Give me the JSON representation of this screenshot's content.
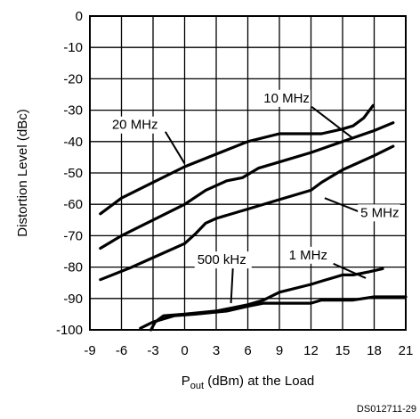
{
  "chart_data": {
    "type": "line",
    "xlabel_main": "P",
    "xlabel_sub": "out",
    "xlabel_rest": " (dBm) at the Load",
    "ylabel": "Distortion Level (dBc)",
    "xlim": [
      -9,
      21
    ],
    "ylim": [
      -100,
      0
    ],
    "xticks": [
      -9,
      -6,
      -3,
      0,
      3,
      6,
      9,
      12,
      15,
      18,
      21
    ],
    "yticks": [
      0,
      -10,
      -20,
      -30,
      -40,
      -50,
      -60,
      -70,
      -80,
      -90,
      -100
    ],
    "xtick_labels": [
      "-9",
      "-6",
      "-3",
      "0",
      "3",
      "6",
      "9",
      "12",
      "15",
      "18",
      "21"
    ],
    "ytick_labels": [
      "0",
      "-10",
      "-20",
      "-30",
      "-40",
      "-50",
      "-60",
      "-70",
      "-80",
      "-90",
      "-100"
    ],
    "grid": true,
    "footnote": "DS012711-29",
    "series": [
      {
        "name": "20 MHz",
        "x": [
          -8,
          -6,
          -3,
          0,
          3,
          6,
          9,
          12,
          13,
          15,
          16,
          17,
          17.9
        ],
        "y": [
          -63,
          -58,
          -53,
          -48,
          -44,
          -40,
          -37.5,
          -37.5,
          -37.5,
          -36,
          -35,
          -32.5,
          -28.5
        ]
      },
      {
        "name": "10 MHz",
        "x": [
          -8,
          -6,
          -3,
          0,
          2,
          4,
          5.5,
          7,
          9,
          12,
          15,
          18,
          19.8
        ],
        "y": [
          -74,
          -70,
          -65,
          -60,
          -55.5,
          -52.5,
          -51.5,
          -48.5,
          -46.5,
          -43.5,
          -40,
          -36.5,
          -34
        ]
      },
      {
        "name": "5 MHz",
        "x": [
          -8,
          -5,
          -3,
          0,
          1,
          2,
          3,
          6,
          9,
          12,
          13,
          15,
          18,
          19.8
        ],
        "y": [
          -84,
          -80,
          -77,
          -72.5,
          -69.5,
          -66,
          -64.5,
          -61.5,
          -58.5,
          -55.5,
          -53,
          -49,
          -44.5,
          -41.5
        ]
      },
      {
        "name": "1 MHz",
        "x": [
          -3.2,
          -2.8,
          -2,
          0,
          3,
          6,
          7.5,
          9,
          12,
          13,
          15,
          16,
          17.5,
          18.8
        ],
        "y": [
          -100,
          -97.5,
          -95.5,
          -95,
          -94,
          -92,
          -90.5,
          -88,
          -85.5,
          -84.5,
          -82.5,
          -82.5,
          -81.5,
          -80.5
        ]
      },
      {
        "name": "500 kHz",
        "x": [
          -4.2,
          -3,
          -1,
          1,
          4,
          6,
          7.5,
          9,
          12,
          13,
          15,
          16,
          18,
          21
        ],
        "y": [
          -99.5,
          -97.5,
          -95.5,
          -95,
          -94,
          -92.5,
          -91.5,
          -91.5,
          -91.5,
          -90.5,
          -90.5,
          -90.5,
          -89.5,
          -89.5
        ]
      }
    ],
    "labels": [
      {
        "text": "20 MHz",
        "series": "20 MHz",
        "tx": -6.9,
        "ty": -36,
        "lx": 0,
        "ly": -47
      },
      {
        "text": "10 MHz",
        "series": "10 MHz",
        "tx": 7.5,
        "ty": -27.5,
        "lx": 16,
        "ly": -39
      },
      {
        "text": "5 MHz",
        "series": "5 MHz",
        "tx": 16.7,
        "ty": -64,
        "lx": 13.3,
        "ly": -58
      },
      {
        "text": "500 kHz",
        "series": "500 kHz",
        "tx": 1.2,
        "ty": -79,
        "lx": 4.4,
        "ly": -91.5
      },
      {
        "text": "1 MHz",
        "series": "1 MHz",
        "tx": 9.9,
        "ty": -77.5,
        "lx": 17.2,
        "ly": -83.5
      }
    ]
  }
}
